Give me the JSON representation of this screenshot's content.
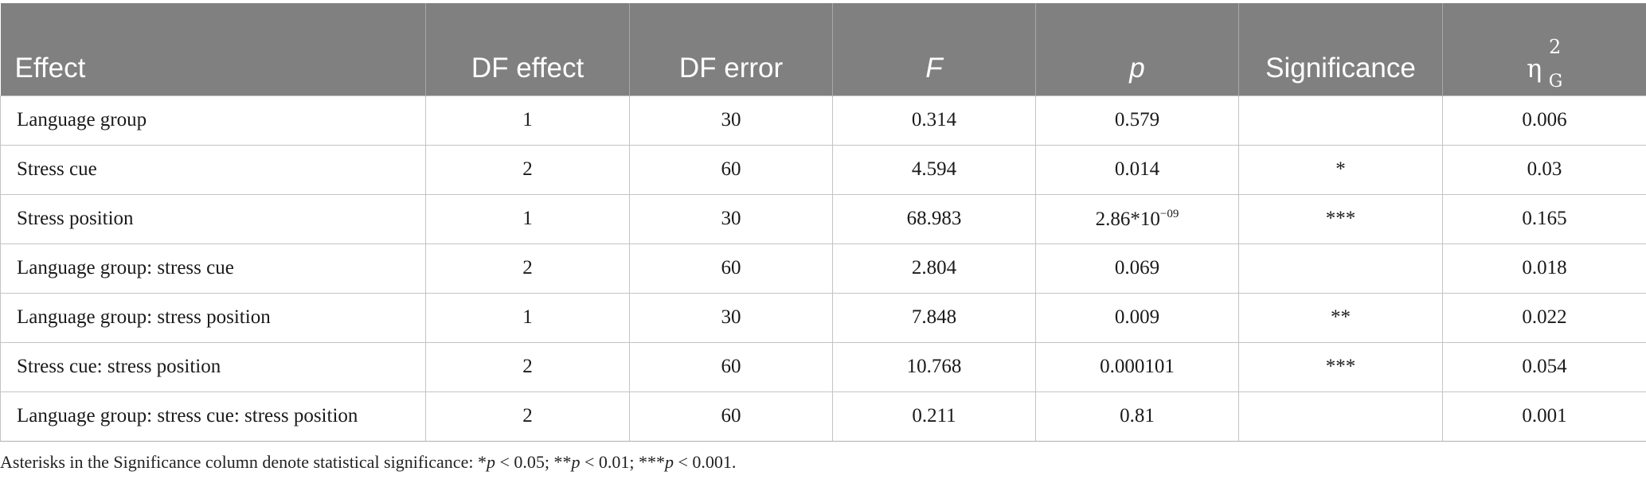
{
  "table": {
    "headers": [
      {
        "text": "Effect"
      },
      {
        "text": "DF effect"
      },
      {
        "text": "DF error"
      },
      {
        "text": "F"
      },
      {
        "text": "p"
      },
      {
        "text": "Significance"
      },
      {
        "text": "η",
        "sup": "2",
        "sub": "G"
      }
    ],
    "rows": [
      {
        "effect": "Language group",
        "df_effect": "1",
        "df_error": "30",
        "f": "0.314",
        "p": "0.579",
        "p_exp": "",
        "sig": "",
        "eta": "0.006"
      },
      {
        "effect": "Stress cue",
        "df_effect": "2",
        "df_error": "60",
        "f": "4.594",
        "p": "0.014",
        "p_exp": "",
        "sig": "*",
        "eta": "0.03"
      },
      {
        "effect": "Stress position",
        "df_effect": "1",
        "df_error": "30",
        "f": "68.983",
        "p": "2.86*10",
        "p_exp": "−09",
        "sig": "***",
        "eta": "0.165"
      },
      {
        "effect": "Language group: stress cue",
        "df_effect": "2",
        "df_error": "60",
        "f": "2.804",
        "p": "0.069",
        "p_exp": "",
        "sig": "",
        "eta": "0.018"
      },
      {
        "effect": "Language group: stress position",
        "df_effect": "1",
        "df_error": "30",
        "f": "7.848",
        "p": "0.009",
        "p_exp": "",
        "sig": "**",
        "eta": "0.022"
      },
      {
        "effect": "Stress cue: stress position",
        "df_effect": "2",
        "df_error": "60",
        "f": "10.768",
        "p": "0.000101",
        "p_exp": "",
        "sig": "***",
        "eta": "0.054"
      },
      {
        "effect": "Language group: stress cue: stress position",
        "df_effect": "2",
        "df_error": "60",
        "f": "0.211",
        "p": "0.81",
        "p_exp": "",
        "sig": "",
        "eta": "0.001"
      }
    ]
  },
  "footnote": {
    "lead": "Asterisks in the Significance column denote statistical significance: ",
    "items": [
      {
        "stars": "*",
        "p": "p",
        "rest": " < 0.05; "
      },
      {
        "stars": "**",
        "p": "p",
        "rest": " < 0.01; "
      },
      {
        "stars": "***",
        "p": "p",
        "rest": " < 0.001."
      }
    ]
  },
  "colors": {
    "header_bg": "#808080",
    "header_text": "#ffffff",
    "grid": "#c4c4c4"
  }
}
